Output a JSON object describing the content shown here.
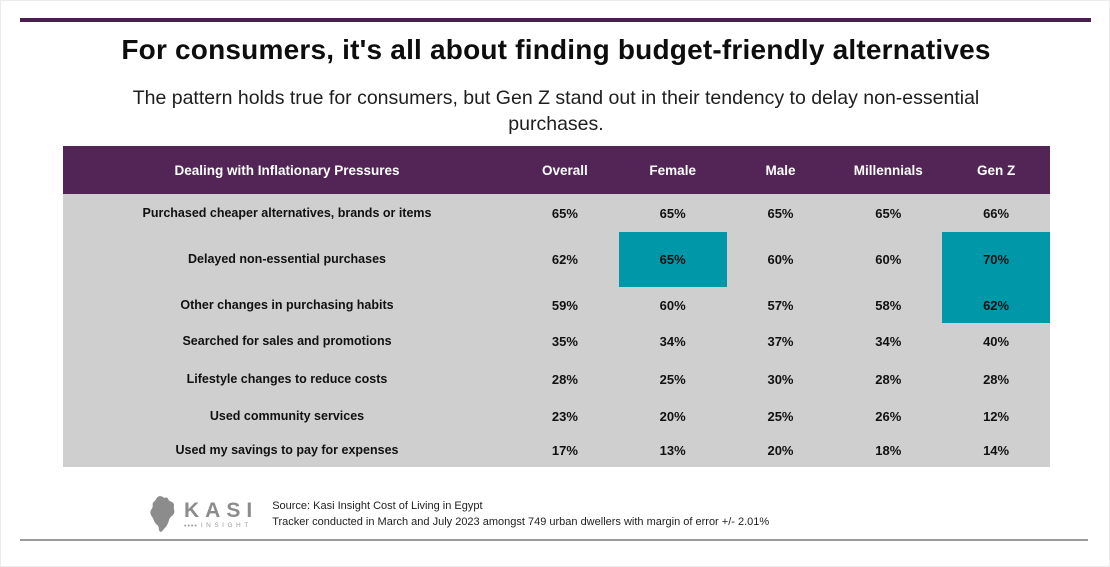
{
  "header": {
    "title": "For consumers, it's all about finding budget-friendly alternatives",
    "subtitle": "The pattern holds true for consumers, but Gen Z stand out in their tendency to delay non-essential purchases."
  },
  "chart_data": {
    "type": "table",
    "title": "For consumers, it's all about finding budget-friendly alternatives",
    "subtitle": "The pattern holds true for consumers, but Gen Z stand out in their tendency to delay non-essential purchases.",
    "columns": [
      "Dealing with Inflationary Pressures",
      "Overall",
      "Female",
      "Male",
      "Millennials",
      "Gen Z"
    ],
    "rows": [
      {
        "label": "Purchased cheaper alternatives, brands or items",
        "values": [
          "65%",
          "65%",
          "65%",
          "65%",
          "66%"
        ],
        "highlights": []
      },
      {
        "label": "Delayed non-essential purchases",
        "values": [
          "62%",
          "65%",
          "60%",
          "60%",
          "70%"
        ],
        "highlights": [
          "Female",
          "Gen Z"
        ]
      },
      {
        "label": "Other changes in purchasing habits",
        "values": [
          "59%",
          "60%",
          "57%",
          "58%",
          "62%"
        ],
        "highlights": [
          "Gen Z"
        ]
      },
      {
        "label": "Searched for sales and promotions",
        "values": [
          "35%",
          "34%",
          "37%",
          "34%",
          "40%"
        ],
        "highlights": []
      },
      {
        "label": "Lifestyle changes to reduce costs",
        "values": [
          "28%",
          "25%",
          "30%",
          "28%",
          "28%"
        ],
        "highlights": []
      },
      {
        "label": "Used community services",
        "values": [
          "23%",
          "20%",
          "25%",
          "26%",
          "12%"
        ],
        "highlights": []
      },
      {
        "label": "Used my savings to pay for expenses",
        "values": [
          "17%",
          "13%",
          "20%",
          "18%",
          "14%"
        ],
        "highlights": []
      }
    ],
    "header_bg": "#522556",
    "body_bg": "#d0cfd0",
    "highlight_color": "#0098a9",
    "accent_rule_color": "#47204d"
  },
  "footer": {
    "logo": {
      "name": "KASI",
      "dots": "••••",
      "sub": "INSIGHT"
    },
    "source_line1": "Source: Kasi Insight Cost of Living in Egypt",
    "source_line2": "Tracker conducted in March and July 2023 amongst 749 urban dwellers with margin of error +/- 2.01%"
  }
}
